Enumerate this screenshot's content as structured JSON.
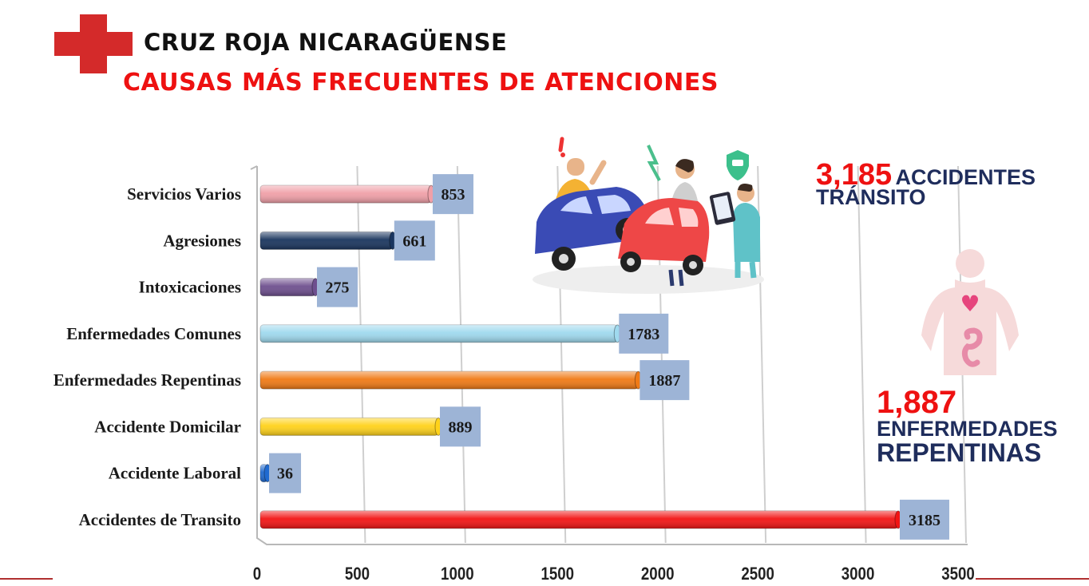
{
  "header": {
    "org_name": "CRUZ ROJA NICARAGÜENSE",
    "title": "CAUSAS MÁS FRECUENTES DE ATENCIONES"
  },
  "colors": {
    "accent_red": "#ee1111",
    "navy": "#1f2d5c",
    "label_box": "#9db4d6"
  },
  "icons": [
    "red-cross-logo-icon",
    "car-accident-illustration-icon",
    "human-body-organs-icon"
  ],
  "chart_data": {
    "type": "bar",
    "orientation": "horizontal",
    "categories": [
      "Servicios Varios",
      "Agresiones",
      "Intoxicaciones",
      "Enfermedades Comunes",
      "Enfermedades Repentinas",
      "Accidente Domicilar",
      "Accidente Laboral",
      "Accidentes de Transito"
    ],
    "values": [
      853,
      661,
      275,
      1783,
      1887,
      889,
      36,
      3185
    ],
    "data_labels": [
      "853",
      "661",
      "275",
      "1783",
      "1887",
      "889",
      "36",
      "3185"
    ],
    "bar_colors": [
      "#f0a0a8",
      "#1a355e",
      "#6e4f8e",
      "#9fd9ee",
      "#f07a16",
      "#ffd21a",
      "#1f6ad0",
      "#f21414"
    ],
    "xlim": [
      0,
      3500
    ],
    "xticks": [
      "0",
      "500",
      "1000",
      "1500",
      "2000",
      "2500",
      "3000",
      "3500"
    ],
    "grid": true,
    "legend": "none"
  },
  "stats": [
    {
      "number": "3,185",
      "label_1": "ACCIDENTES",
      "label_2": "TRÁNSITO"
    },
    {
      "number": "1,887",
      "label_1": "ENFERMEDADES",
      "label_2": "REPENTINAS"
    }
  ]
}
